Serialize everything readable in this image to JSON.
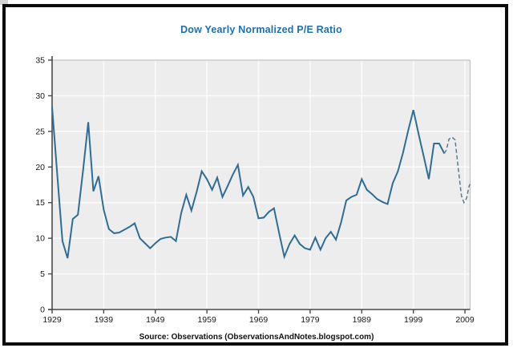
{
  "chart": {
    "title": "Dow Yearly Normalized P/E Ratio",
    "source": "Source: Observations (ObservationsAndNotes.blogspot.com)"
  },
  "chart_data": {
    "type": "line",
    "title": "Dow Yearly Normalized P/E Ratio",
    "xlabel": "",
    "ylabel": "",
    "xlim": [
      1929,
      2010
    ],
    "ylim": [
      0,
      35
    ],
    "x_ticks": [
      1929,
      1939,
      1949,
      1959,
      1969,
      1979,
      1989,
      1999,
      2009
    ],
    "y_ticks": [
      0,
      5,
      10,
      15,
      20,
      25,
      30,
      35
    ],
    "grid": true,
    "legend": "none",
    "colors": {
      "plot_bg": "#ededed",
      "gridline": "#fafafa",
      "axis": "#4a4a4a",
      "border_light": "#c2c2c2",
      "title": "#1e6fae",
      "solid_line": "#2e6d96",
      "dashed_line": "#5d7b8d"
    },
    "series": [
      {
        "name": "normalized-pe-actual",
        "style": "solid",
        "color": "#2e6d96",
        "x": [
          1929,
          1930,
          1931,
          1932,
          1933,
          1934,
          1935,
          1936,
          1937,
          1938,
          1939,
          1940,
          1941,
          1942,
          1943,
          1944,
          1945,
          1946,
          1947,
          1948,
          1949,
          1950,
          1951,
          1952,
          1953,
          1954,
          1955,
          1956,
          1957,
          1958,
          1959,
          1960,
          1961,
          1962,
          1963,
          1964,
          1965,
          1966,
          1967,
          1968,
          1969,
          1970,
          1971,
          1972,
          1973,
          1974,
          1975,
          1976,
          1977,
          1978,
          1979,
          1980,
          1981,
          1982,
          1983,
          1984,
          1985,
          1986,
          1987,
          1988,
          1989,
          1990,
          1991,
          1992,
          1993,
          1994,
          1995,
          1996,
          1997,
          1998,
          1999,
          2000,
          2001,
          2002,
          2003,
          2004,
          2005
        ],
        "y": [
          28.4,
          19.0,
          9.6,
          7.2,
          12.7,
          13.3,
          19.5,
          26.3,
          16.6,
          18.7,
          14.0,
          11.3,
          10.7,
          10.8,
          11.2,
          11.6,
          12.1,
          10.0,
          9.3,
          8.6,
          9.3,
          9.9,
          10.1,
          10.2,
          9.6,
          13.5,
          16.1,
          13.9,
          16.5,
          19.4,
          18.3,
          16.8,
          18.5,
          15.8,
          17.3,
          18.9,
          20.3,
          16.0,
          17.2,
          15.8,
          12.8,
          12.9,
          13.7,
          14.2,
          10.7,
          7.4,
          9.2,
          10.4,
          9.2,
          8.6,
          8.4,
          10.1,
          8.4,
          10.0,
          10.9,
          9.8,
          12.2,
          15.3,
          15.8,
          16.1,
          18.3,
          16.8,
          16.2,
          15.5,
          15.1,
          14.8,
          17.7,
          19.4,
          22.0,
          25.1,
          28.0,
          24.7,
          21.5,
          18.3,
          23.3,
          23.3,
          21.9
        ]
      },
      {
        "name": "normalized-pe-recent-dashed",
        "style": "dashed",
        "color": "#5d7b8d",
        "x": [
          2005,
          2005.4,
          2005.9,
          2006.5,
          2007.1,
          2007.7,
          2008.3,
          2008.8,
          2009.3,
          2009.8,
          2010
        ],
        "y": [
          21.9,
          22.4,
          23.9,
          24.2,
          23.8,
          19.8,
          16.0,
          15.0,
          15.6,
          17.3,
          17.6
        ]
      }
    ]
  }
}
